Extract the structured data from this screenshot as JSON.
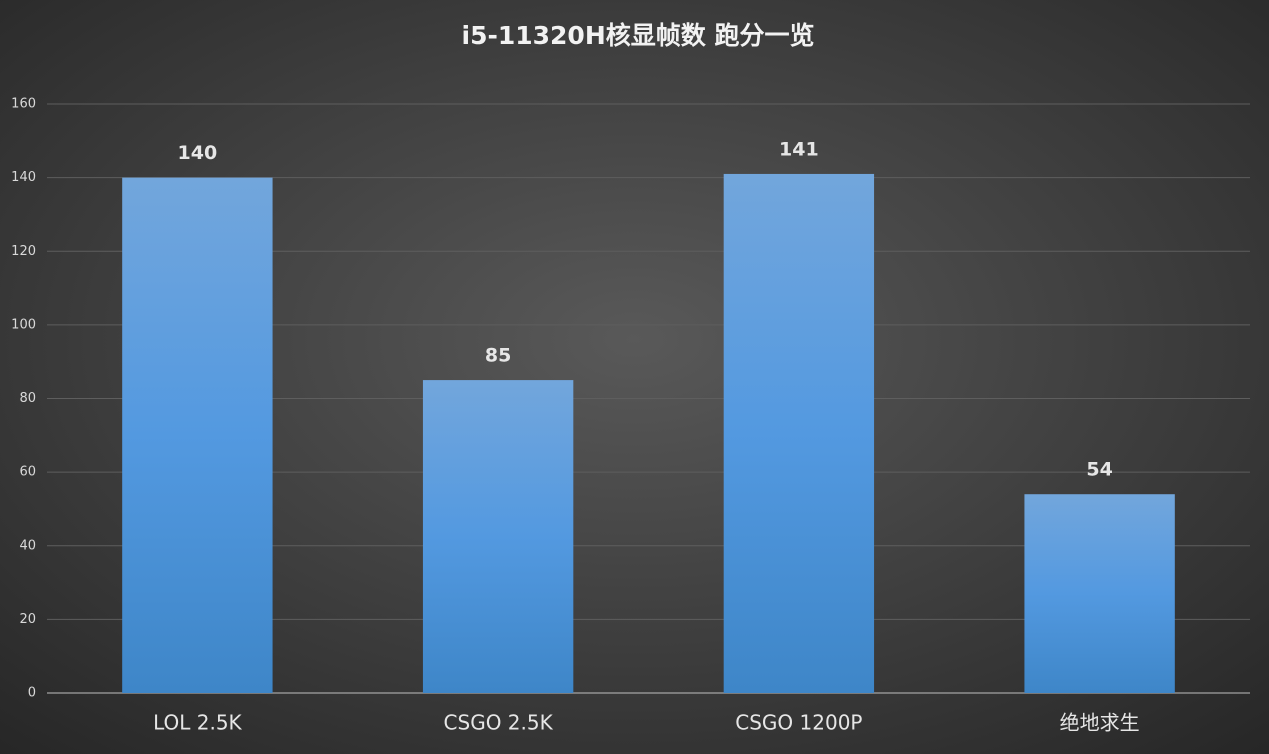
{
  "chart_data": {
    "type": "bar",
    "title": "i5-11320H核显帧数 跑分一览",
    "categories": [
      "LOL 2.5K",
      "CSGO 2.5K",
      "CSGO 1200P",
      "绝地求生"
    ],
    "values": [
      140,
      85,
      141,
      54
    ],
    "color": "#5b9bd5",
    "ylim": [
      0,
      160
    ],
    "yticks": [
      0,
      20,
      40,
      60,
      80,
      100,
      120,
      140,
      160
    ],
    "grid": true
  }
}
